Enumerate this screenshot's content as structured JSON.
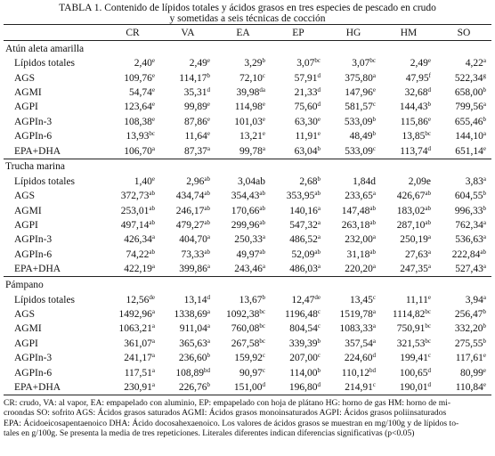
{
  "title": [
    "TABLA 1. Contenido de lípidos totales y ácidos grasos en tres especies de pescado en crudo",
    "y sometidas a seis técnicas de cocción"
  ],
  "table": {
    "columns": [
      "CR",
      "VA",
      "EA",
      "EP",
      "HG",
      "HM",
      "SO"
    ],
    "sections": [
      {
        "name": "Atún aleta amarilla",
        "rows": [
          {
            "label": "Lípidos totales",
            "cells": [
              {
                "value": "2,40",
                "sup": "e"
              },
              {
                "value": "2,49",
                "sup": "e"
              },
              {
                "value": "3,29",
                "sup": "b"
              },
              {
                "value": "3,07",
                "sup": "bc"
              },
              {
                "value": "3,07",
                "sup": "bc"
              },
              {
                "value": "2,49",
                "sup": "e"
              },
              {
                "value": "4,22",
                "sup": "a"
              }
            ]
          },
          {
            "label": "AGS",
            "cells": [
              {
                "value": "109,76",
                "sup": "e"
              },
              {
                "value": "114,17",
                "sup": "b"
              },
              {
                "value": "72,10",
                "sup": "c"
              },
              {
                "value": "57,91",
                "sup": "d"
              },
              {
                "value": "375,80",
                "sup": "a"
              },
              {
                "value": "47,95",
                "sup": "f"
              },
              {
                "value": "522,34",
                "sup": "g"
              }
            ]
          },
          {
            "label": "AGMI",
            "cells": [
              {
                "value": "54,74",
                "sup": "e"
              },
              {
                "value": "35,31",
                "sup": "d"
              },
              {
                "value": "39,98",
                "sup": "da"
              },
              {
                "value": "21,33",
                "sup": "d"
              },
              {
                "value": "147,96",
                "sup": "e"
              },
              {
                "value": "32,68",
                "sup": "d"
              },
              {
                "value": "658,00",
                "sup": "b"
              }
            ]
          },
          {
            "label": "AGPI",
            "cells": [
              {
                "value": "123,64",
                "sup": "e"
              },
              {
                "value": "99,89",
                "sup": "e"
              },
              {
                "value": "114,98",
                "sup": "e"
              },
              {
                "value": "75,60",
                "sup": "d"
              },
              {
                "value": "581,57",
                "sup": "c"
              },
              {
                "value": "144,43",
                "sup": "b"
              },
              {
                "value": "799,56",
                "sup": "a"
              }
            ]
          },
          {
            "label": "AGPIn-3",
            "cells": [
              {
                "value": "108,38",
                "sup": "e"
              },
              {
                "value": "87,86",
                "sup": "e"
              },
              {
                "value": "101,03",
                "sup": "e"
              },
              {
                "value": "63,30",
                "sup": "e"
              },
              {
                "value": "533,09",
                "sup": "b"
              },
              {
                "value": "115,86",
                "sup": "e"
              },
              {
                "value": "655,46",
                "sup": "b"
              }
            ]
          },
          {
            "label": "AGPIn-6",
            "cells": [
              {
                "value": "13,93",
                "sup": "bc"
              },
              {
                "value": "11,64",
                "sup": "e"
              },
              {
                "value": "13,21",
                "sup": "e"
              },
              {
                "value": "11,91",
                "sup": "e"
              },
              {
                "value": "48,49",
                "sup": "b"
              },
              {
                "value": "13,85",
                "sup": "bc"
              },
              {
                "value": "144,10",
                "sup": "a"
              }
            ]
          },
          {
            "label": "EPA+DHA",
            "cells": [
              {
                "value": "106,70",
                "sup": "a"
              },
              {
                "value": "87,37",
                "sup": "a"
              },
              {
                "value": "99,78",
                "sup": "a"
              },
              {
                "value": "63,04",
                "sup": "b"
              },
              {
                "value": "533,09",
                "sup": "c"
              },
              {
                "value": "113,74",
                "sup": "d"
              },
              {
                "value": "651,14",
                "sup": "e"
              }
            ]
          }
        ]
      },
      {
        "name": "Trucha marina",
        "rows": [
          {
            "label": "Lípidos totales",
            "cells": [
              {
                "value": "1,40",
                "sup": "e"
              },
              {
                "value": "2,96",
                "sup": "ab"
              },
              {
                "value": "3,04ab"
              },
              {
                "value": "2,68",
                "sup": "b"
              },
              {
                "value": "1,84d"
              },
              {
                "value": "2,09e"
              },
              {
                "value": "3,83",
                "sup": "a"
              }
            ]
          },
          {
            "label": "AGS",
            "cells": [
              {
                "value": "372,73",
                "sup": "ab"
              },
              {
                "value": "434,74",
                "sup": "ab"
              },
              {
                "value": "354,43",
                "sup": "ab"
              },
              {
                "value": "353,95",
                "sup": "ab"
              },
              {
                "value": "233,65",
                "sup": "a"
              },
              {
                "value": "426,67",
                "sup": "ab"
              },
              {
                "value": "604,55",
                "sup": "b"
              }
            ]
          },
          {
            "label": "AGMI",
            "cells": [
              {
                "value": "253,01",
                "sup": "ab"
              },
              {
                "value": "246,17",
                "sup": "ab"
              },
              {
                "value": "170,66",
                "sup": "ab"
              },
              {
                "value": "140,16",
                "sup": "a"
              },
              {
                "value": "147,48",
                "sup": "ab"
              },
              {
                "value": "183,02",
                "sup": "ab"
              },
              {
                "value": "996,33",
                "sup": "b"
              }
            ]
          },
          {
            "label": "AGPI",
            "cells": [
              {
                "value": "497,14",
                "sup": "ab"
              },
              {
                "value": "479,27",
                "sup": "ab"
              },
              {
                "value": "299,96",
                "sup": "ab"
              },
              {
                "value": "547,32",
                "sup": "a"
              },
              {
                "value": "263,18",
                "sup": "ab"
              },
              {
                "value": "287,10",
                "sup": "ab"
              },
              {
                "value": "762,34",
                "sup": "a"
              }
            ]
          },
          {
            "label": "AGPIn-3",
            "cells": [
              {
                "value": "426,34",
                "sup": "a"
              },
              {
                "value": "404,70",
                "sup": "a"
              },
              {
                "value": "250,33",
                "sup": "a"
              },
              {
                "value": "486,52",
                "sup": "a"
              },
              {
                "value": "232,00",
                "sup": "a"
              },
              {
                "value": "250,19",
                "sup": "a"
              },
              {
                "value": "536,63",
                "sup": "a"
              }
            ]
          },
          {
            "label": "AGPIn-6",
            "cells": [
              {
                "value": "74,22",
                "sup": "ab"
              },
              {
                "value": "73,33",
                "sup": "ab"
              },
              {
                "value": "49,97",
                "sup": "ab"
              },
              {
                "value": "52,09",
                "sup": "ab"
              },
              {
                "value": "31,18",
                "sup": "ab"
              },
              {
                "value": "27,63",
                "sup": "a"
              },
              {
                "value": "222,84",
                "sup": "ab"
              }
            ]
          },
          {
            "label": "EPA+DHA",
            "cells": [
              {
                "value": "422,19",
                "sup": "a"
              },
              {
                "value": "399,86",
                "sup": "a"
              },
              {
                "value": "243,46",
                "sup": "a"
              },
              {
                "value": "486,03",
                "sup": "a"
              },
              {
                "value": "220,20",
                "sup": "a"
              },
              {
                "value": "247,35",
                "sup": "a"
              },
              {
                "value": "527,43",
                "sup": "a"
              }
            ]
          }
        ]
      },
      {
        "name": "Pámpano",
        "rows": [
          {
            "label": "Lípidos totales",
            "cells": [
              {
                "value": "12,56",
                "sup": "de"
              },
              {
                "value": "13,14",
                "sup": "d"
              },
              {
                "value": "13,67",
                "sup": "b"
              },
              {
                "value": "12,47",
                "sup": "de"
              },
              {
                "value": "13,45",
                "sup": "c"
              },
              {
                "value": "11,11",
                "sup": "e"
              },
              {
                "value": "3,94",
                "sup": "a"
              }
            ]
          },
          {
            "label": "AGS",
            "cells": [
              {
                "value": "1492,96",
                "sup": "a"
              },
              {
                "value": "1338,69",
                "sup": "a"
              },
              {
                "value": "1092,38",
                "sup": "bc"
              },
              {
                "value": "1196,48",
                "sup": "c"
              },
              {
                "value": "1519,78",
                "sup": "a"
              },
              {
                "value": "1114,82",
                "sup": "bc"
              },
              {
                "value": "256,47",
                "sup": "b"
              }
            ]
          },
          {
            "label": "AGMI",
            "cells": [
              {
                "value": "1063,21",
                "sup": "a"
              },
              {
                "value": "911,04",
                "sup": "a"
              },
              {
                "value": "760,08",
                "sup": "bc"
              },
              {
                "value": "804,54",
                "sup": "c"
              },
              {
                "value": "1083,33",
                "sup": "a"
              },
              {
                "value": "750,91",
                "sup": "bc"
              },
              {
                "value": "332,20",
                "sup": "b"
              }
            ]
          },
          {
            "label": "AGPI",
            "cells": [
              {
                "value": "361,07",
                "sup": "a"
              },
              {
                "value": "365,63",
                "sup": "a"
              },
              {
                "value": "267,58",
                "sup": "bc"
              },
              {
                "value": "339,39",
                "sup": "b"
              },
              {
                "value": "357,54",
                "sup": "a"
              },
              {
                "value": "321,53",
                "sup": "bc"
              },
              {
                "value": "275,55",
                "sup": "b"
              }
            ]
          },
          {
            "label": "AGPIn-3",
            "cells": [
              {
                "value": "241,17",
                "sup": "a"
              },
              {
                "value": "236,60",
                "sup": "b"
              },
              {
                "value": "159,92",
                "sup": "c"
              },
              {
                "value": "207,00",
                "sup": "c"
              },
              {
                "value": "224,60",
                "sup": "d"
              },
              {
                "value": "199,41",
                "sup": "c"
              },
              {
                "value": "117,61",
                "sup": "e"
              }
            ]
          },
          {
            "label": "AGPIn-6",
            "cells": [
              {
                "value": "117,51",
                "sup": "a"
              },
              {
                "value": "108,89",
                "sup": "bd"
              },
              {
                "value": "90,97",
                "sup": "c"
              },
              {
                "value": "114,00",
                "sup": "b"
              },
              {
                "value": "110,12",
                "sup": "bd"
              },
              {
                "value": "100,65",
                "sup": "d"
              },
              {
                "value": "80,99",
                "sup": "e"
              }
            ]
          },
          {
            "label": "EPA+DHA",
            "cells": [
              {
                "value": "230,91",
                "sup": "a"
              },
              {
                "value": "226,76",
                "sup": "b"
              },
              {
                "value": "151,00",
                "sup": "d"
              },
              {
                "value": "196,80",
                "sup": "d"
              },
              {
                "value": "214,91",
                "sup": "c"
              },
              {
                "value": "190,01",
                "sup": "d"
              },
              {
                "value": "110,84",
                "sup": "e"
              }
            ]
          }
        ]
      }
    ]
  },
  "footnote": [
    "CR: crudo, VA: al vapor, EA: empapelado con aluminio, EP: empapelado con hoja de plátano HG: horno de gas HM: horno de mi-",
    "croondas SO: sofrito AGS: Ácidos grasos saturados AGMI: Ácidos grasos monoinsaturados AGPI: Ácidos grasos poliinsaturados",
    "EPA: Ácidoeicosapentaenoico DHA: Ácido docosahexaenoico. Los valores de ácidos grasos se muestran en mg/100g y de lípidos to-",
    "tales en g/100g. Se presenta la media de tres repeticiones. Literales diferentes indican diferencias significativas (p<0.05)"
  ]
}
